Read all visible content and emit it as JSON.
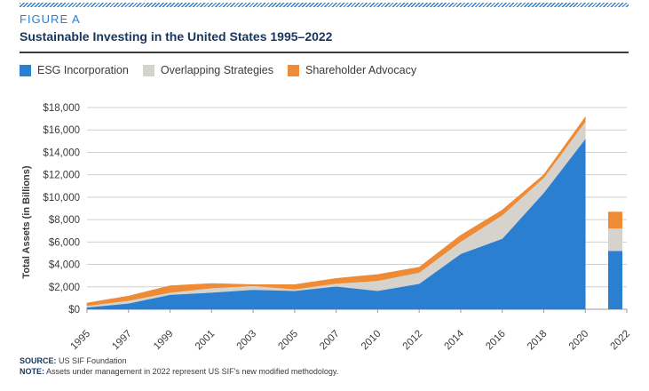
{
  "figure_label": "FIGURE A",
  "title": "Sustainable Investing in the United States 1995–2022",
  "source_label": "SOURCE:",
  "source_text": "US SIF Foundation",
  "note_label": "NOTE:",
  "note_text": "Assets under management in 2022 represent US SIF's new modified methodology.",
  "colors": {
    "esg": "#2b7fd0",
    "overlap": "#d6d3cd",
    "advocacy": "#ef8a35",
    "title": "#17375e"
  },
  "chart_data": {
    "type": "area",
    "title": "Sustainable Investing in the United States 1995–2022",
    "ylabel": "Total Assets (in Billions)",
    "xlabel": "",
    "ylim": [
      0,
      18000
    ],
    "yticks": [
      0,
      2000,
      4000,
      6000,
      8000,
      10000,
      12000,
      14000,
      16000,
      18000
    ],
    "ytick_labels": [
      "$0",
      "$2,000",
      "$4,000",
      "$6,000",
      "$8,000",
      "$10,000",
      "$12,000",
      "$14,000",
      "$16,000",
      "$18,000"
    ],
    "categories": [
      "1995",
      "1997",
      "1999",
      "2001",
      "2003",
      "2005",
      "2007",
      "2010",
      "2012",
      "2014",
      "2016",
      "2018",
      "2020",
      "2022"
    ],
    "stacked": true,
    "grid": true,
    "legend_position": "top-left",
    "series": [
      {
        "name": "ESG Incorporation",
        "color": "#2b7fd0",
        "values": [
          170,
          530,
          1300,
          1500,
          1750,
          1650,
          2050,
          1650,
          2280,
          4950,
          6300,
          10400,
          15200,
          5200
        ]
      },
      {
        "name": "Overlapping Strategies",
        "color": "#d6d3cd",
        "values": [
          150,
          250,
          200,
          400,
          350,
          150,
          250,
          900,
          1000,
          1100,
          2100,
          1350,
          1550,
          2000
        ]
      },
      {
        "name": "Shareholder Advocacy",
        "color": "#ef8a35",
        "values": [
          230,
          400,
          600,
          400,
          100,
          400,
          450,
          550,
          470,
          550,
          450,
          250,
          400,
          1500
        ]
      }
    ],
    "separate_bar_category": "2022"
  }
}
